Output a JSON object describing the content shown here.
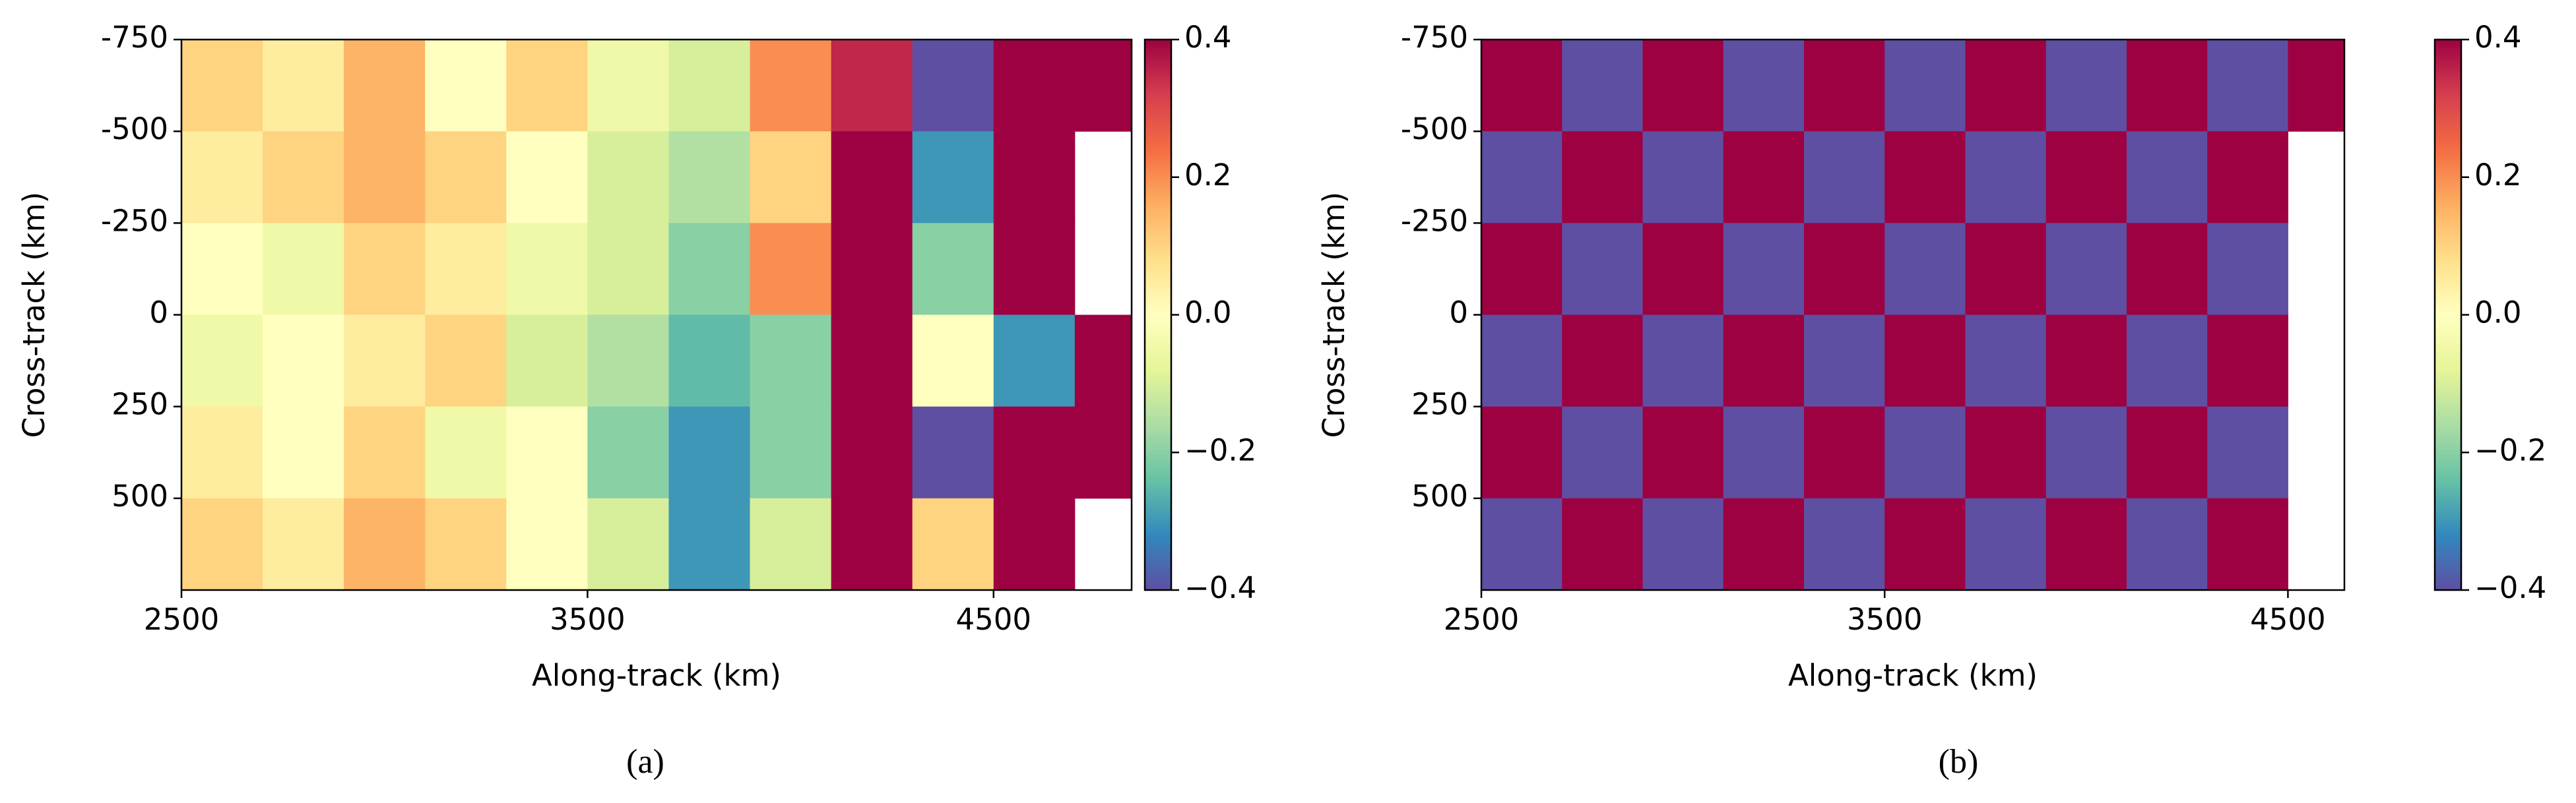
{
  "chart_data": [
    {
      "type": "heatmap",
      "caption": "(a)",
      "xlabel": "Along-track (km)",
      "ylabel": "Cross-track (km)",
      "colormap": "Spectral_r",
      "x": [
        2600,
        2800,
        3000,
        3200,
        3400,
        3600,
        3800,
        4000,
        4200,
        4400,
        4600,
        4800
      ],
      "y": [
        -625,
        -375,
        -125,
        125,
        375,
        625
      ],
      "z": [
        [
          0.1,
          0.05,
          0.15,
          0.0,
          0.1,
          -0.05,
          -0.1,
          0.2,
          0.35,
          -0.4,
          0.4,
          0.4
        ],
        [
          0.05,
          0.1,
          0.15,
          0.1,
          0.0,
          -0.1,
          -0.15,
          0.1,
          0.4,
          -0.3,
          0.4,
          null
        ],
        [
          0.0,
          -0.05,
          0.1,
          0.05,
          -0.05,
          -0.1,
          -0.2,
          0.2,
          0.4,
          -0.2,
          0.4,
          null
        ],
        [
          -0.05,
          0.0,
          0.05,
          0.1,
          -0.1,
          -0.15,
          -0.25,
          -0.2,
          0.4,
          0.0,
          -0.3,
          0.4
        ],
        [
          0.05,
          0.0,
          0.1,
          -0.05,
          0.0,
          -0.2,
          -0.3,
          -0.2,
          0.4,
          -0.4,
          0.4,
          0.4
        ],
        [
          0.1,
          0.05,
          0.15,
          0.1,
          0.0,
          -0.1,
          -0.3,
          -0.1,
          0.4,
          0.1,
          0.4,
          null
        ]
      ],
      "xlim": [
        2500,
        4840
      ],
      "ylim": [
        -750,
        750
      ],
      "yaxis_inverted": true,
      "xticks": [
        2500,
        3500,
        4500
      ],
      "yticks": [
        -750,
        -500,
        -250,
        0,
        250,
        500
      ],
      "colorbar_lim": [
        -0.4,
        0.4
      ],
      "colorbar_ticks": [
        0.4,
        0.2,
        {
          "value": 0,
          "label": "0.0"
        },
        {
          "value": -0.2,
          "label": "−0.2"
        },
        {
          "value": -0.4,
          "label": "−0.4"
        }
      ]
    },
    {
      "type": "heatmap",
      "caption": "(b)",
      "xlabel": "Along-track (km)",
      "ylabel": "Cross-track (km)",
      "colormap": "Spectral_r",
      "x": [
        2600,
        2800,
        3000,
        3200,
        3400,
        3600,
        3800,
        4000,
        4200,
        4400,
        4600
      ],
      "y": [
        -625,
        -375,
        -125,
        125,
        375,
        625
      ],
      "z": [
        [
          0.4,
          -0.4,
          0.4,
          -0.4,
          0.4,
          -0.4,
          0.4,
          -0.4,
          0.4,
          -0.4,
          0.4
        ],
        [
          -0.4,
          0.4,
          -0.4,
          0.4,
          -0.4,
          0.4,
          -0.4,
          0.4,
          -0.4,
          0.4,
          null
        ],
        [
          0.4,
          -0.4,
          0.4,
          -0.4,
          0.4,
          -0.4,
          0.4,
          -0.4,
          0.4,
          -0.4,
          null
        ],
        [
          -0.4,
          0.4,
          -0.4,
          0.4,
          -0.4,
          0.4,
          -0.4,
          0.4,
          -0.4,
          0.4,
          null
        ],
        [
          0.4,
          -0.4,
          0.4,
          -0.4,
          0.4,
          -0.4,
          0.4,
          -0.4,
          0.4,
          -0.4,
          null
        ],
        [
          -0.4,
          0.4,
          -0.4,
          0.4,
          -0.4,
          0.4,
          -0.4,
          0.4,
          -0.4,
          0.4,
          null
        ]
      ],
      "xlim": [
        2500,
        4640
      ],
      "ylim": [
        -750,
        750
      ],
      "yaxis_inverted": true,
      "xticks": [
        2500,
        3500,
        4500
      ],
      "yticks": [
        -750,
        -500,
        -250,
        0,
        250,
        500
      ],
      "colorbar_lim": [
        -0.4,
        0.4
      ],
      "colorbar_ticks": [
        0.4,
        0.2,
        {
          "value": 0,
          "label": "0.0"
        },
        {
          "value": -0.2,
          "label": "−0.2"
        },
        {
          "value": -0.4,
          "label": "−0.4"
        }
      ]
    }
  ]
}
